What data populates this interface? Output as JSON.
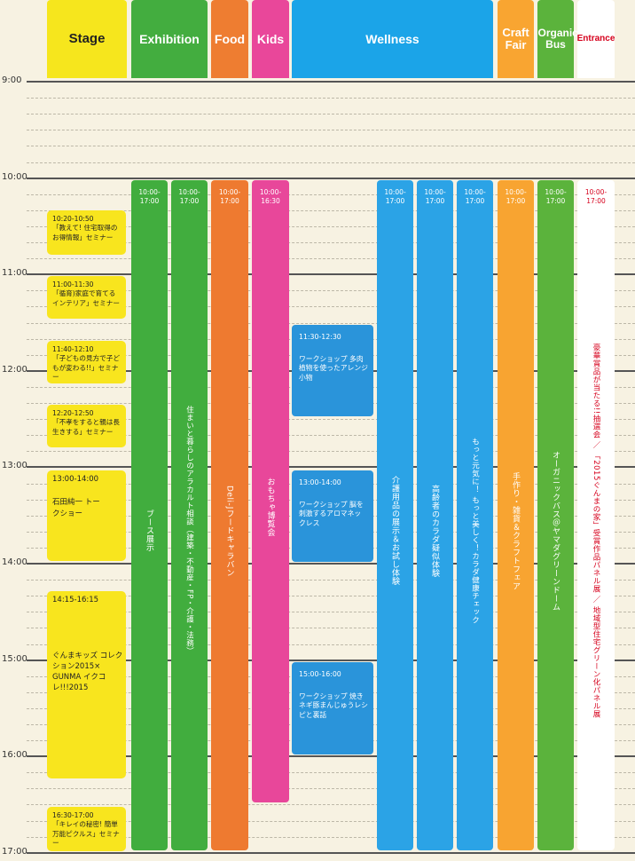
{
  "headers": [
    {
      "id": "stage",
      "label": "Stage",
      "color": "#f6e61d",
      "text_color": "#222222"
    },
    {
      "id": "exhibition",
      "label": "Exhibition",
      "color": "#43ad3f",
      "text_color": "#ffffff"
    },
    {
      "id": "food",
      "label": "Food",
      "color": "#ee7d31",
      "text_color": "#ffffff"
    },
    {
      "id": "kids",
      "label": "Kids",
      "color": "#e9479a",
      "text_color": "#ffffff"
    },
    {
      "id": "wellness",
      "label": "Wellness",
      "color": "#1ba4e8",
      "text_color": "#ffffff"
    },
    {
      "id": "craft",
      "label": "Craft Fair",
      "color": "#f9a531",
      "text_color": "#ffffff"
    },
    {
      "id": "organic",
      "label": "Organic Bus",
      "color": "#5bb33c",
      "text_color": "#ffffff"
    },
    {
      "id": "entrance",
      "label": "Entrance",
      "color": "#ffffff",
      "text_color": "#d6001c"
    }
  ],
  "times": [
    "9:00",
    "10:00",
    "11:00",
    "12:00",
    "13:00",
    "14:00",
    "15:00",
    "16:00",
    "17:00"
  ],
  "stage_events": [
    {
      "time": "10:20-10:50",
      "title": "「教えて! 住宅取得のお得情報」セミナー"
    },
    {
      "time": "11:00-11:30",
      "title": "「循育)家庭で育てるインテリア」セミナー"
    },
    {
      "time": "11:40-12:10",
      "title": "「子どもの見方で子どもが変わる!!」セミナー"
    },
    {
      "time": "12:20-12:50",
      "title": "「不孝をすると親は長生きする」セミナー"
    },
    {
      "time": "13:00-14:00",
      "title": "石田純一 トークショー"
    },
    {
      "time": "14:15-16:15",
      "title": "ぐんまキッズ コレクション2015× GUNMA イクコレ!!!2015"
    },
    {
      "time": "16:30-17:00",
      "title": "「キレイの秘密! 簡単万能ピクルス」セミナー"
    }
  ],
  "bars": [
    {
      "column": "exhibition",
      "time": "10:00-17:00",
      "label": "ブース展示",
      "color": "#41ad3e"
    },
    {
      "column": "exhibition2",
      "time": "10:00-17:00",
      "label": "住まいと暮らしのアラカルト相談（建築・不動産・FP・介護・法務）",
      "color": "#41ad3e"
    },
    {
      "column": "food",
      "time": "10:00-17:00",
      "label": "Deli-Jフードキャラバン",
      "color": "#ee7a30"
    },
    {
      "column": "kids",
      "time": "10:00-16:30",
      "label": "おもちゃ博覧会",
      "color": "#e8479a"
    },
    {
      "column": "wellness1",
      "time": "10:00-17:00",
      "label": "介護用品の展示＆お試し体験",
      "color": "#2ba3e6"
    },
    {
      "column": "wellness2",
      "time": "10:00-17:00",
      "label": "高齢者のカラダ疑似体験",
      "color": "#2ba3e6"
    },
    {
      "column": "wellness3",
      "time": "10:00-17:00",
      "label": "もっと元気に！ もっと美しく！カラダ健康チェック",
      "color": "#2ba3e6"
    },
    {
      "column": "craft",
      "time": "10:00-17:00",
      "label": "手作り・雑貨＆クラフトフェア",
      "color": "#f8a431"
    },
    {
      "column": "organic",
      "time": "10:00-17:00",
      "label": "オーガニックバス＠ヤマダグリーンドーム",
      "color": "#5bb33c"
    }
  ],
  "wellness_workshops": [
    {
      "time": "11:30-12:30",
      "title": "ワークショップ 多肉植物を使ったアレンジ小物"
    },
    {
      "time": "13:00-14:00",
      "title": "ワークショップ 脳を刺激するアロマネックレス"
    },
    {
      "time": "15:00-16:00",
      "title": "ワークショップ 焼きネギ豚まんじゅうレシピと裏話"
    }
  ],
  "entrance": {
    "time": "10:00-17:00",
    "label": "豪華賞品が当たる!!抽選会 ／ 「2015ぐんまの家」受賞作品パネル展 ／ 地域型住宅グリーン化パネル展",
    "color": "#d6001c"
  }
}
